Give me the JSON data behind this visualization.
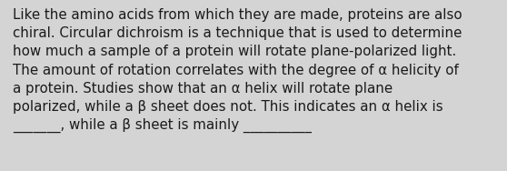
{
  "background_color": "#d4d4d4",
  "text_color": "#1a1a1a",
  "font_size": 10.8,
  "text": "Like the amino acids from which they are made, proteins are also\nchiral. Circular dichroism is a technique that is used to determine\nhow much a sample of a protein will rotate plane-polarized light.\nThe amount of rotation correlates with the degree of α helicity of\na protein. Studies show that an α helix will rotate plane\npolarized, while a β sheet does not. This indicates an α helix is\n_______, while a β sheet is mainly __________",
  "fig_width": 5.58,
  "fig_height": 1.88,
  "dpi": 100
}
